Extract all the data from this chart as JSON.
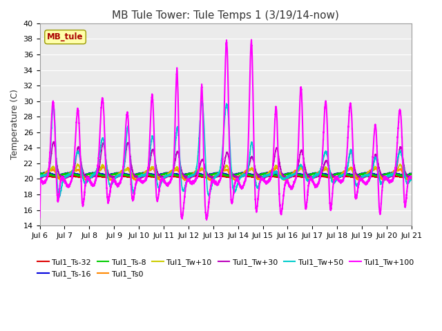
{
  "title": "MB Tule Tower: Tule Temps 1 (3/19/14-now)",
  "ylabel": "Temperature (C)",
  "annotation": "MB_tule",
  "ylim": [
    14,
    40
  ],
  "yticks": [
    14,
    16,
    18,
    20,
    22,
    24,
    26,
    28,
    30,
    32,
    34,
    36,
    38,
    40
  ],
  "x_tick_labels": [
    "Jul 6",
    "Jul 7",
    "Jul 8",
    "Jul 9",
    "Jul 10",
    "Jul 11",
    "Jul 12",
    "Jul 13",
    "Jul 14",
    "Jul 15",
    "Jul 16",
    "Jul 17",
    "Jul 18",
    "Jul 19",
    "Jul 20",
    "Jul 21"
  ],
  "series": [
    {
      "name": "Tul1_Ts-32",
      "color": "#dd0000",
      "lw": 1.2
    },
    {
      "name": "Tul1_Ts-16",
      "color": "#0000dd",
      "lw": 1.2
    },
    {
      "name": "Tul1_Ts-8",
      "color": "#00cc00",
      "lw": 1.2
    },
    {
      "name": "Tul1_Ts0",
      "color": "#ff8800",
      "lw": 1.2
    },
    {
      "name": "Tul1_Tw+10",
      "color": "#cccc00",
      "lw": 1.2
    },
    {
      "name": "Tul1_Tw+30",
      "color": "#bb00bb",
      "lw": 1.2
    },
    {
      "name": "Tul1_Tw+50",
      "color": "#00cccc",
      "lw": 1.2
    },
    {
      "name": "Tul1_Tw+100",
      "color": "#ff00ff",
      "lw": 1.5
    }
  ],
  "spike_heights": [
    30,
    29,
    31,
    29,
    31,
    35,
    33,
    38,
    38,
    30,
    32,
    30,
    30,
    27,
    29
  ],
  "spike_dip_scale": 0.55,
  "bg_color": "#ffffff",
  "plot_bg": "#ebebeb",
  "grid_color": "#ffffff",
  "title_fontsize": 11,
  "tick_fontsize": 8,
  "legend_fontsize": 8
}
